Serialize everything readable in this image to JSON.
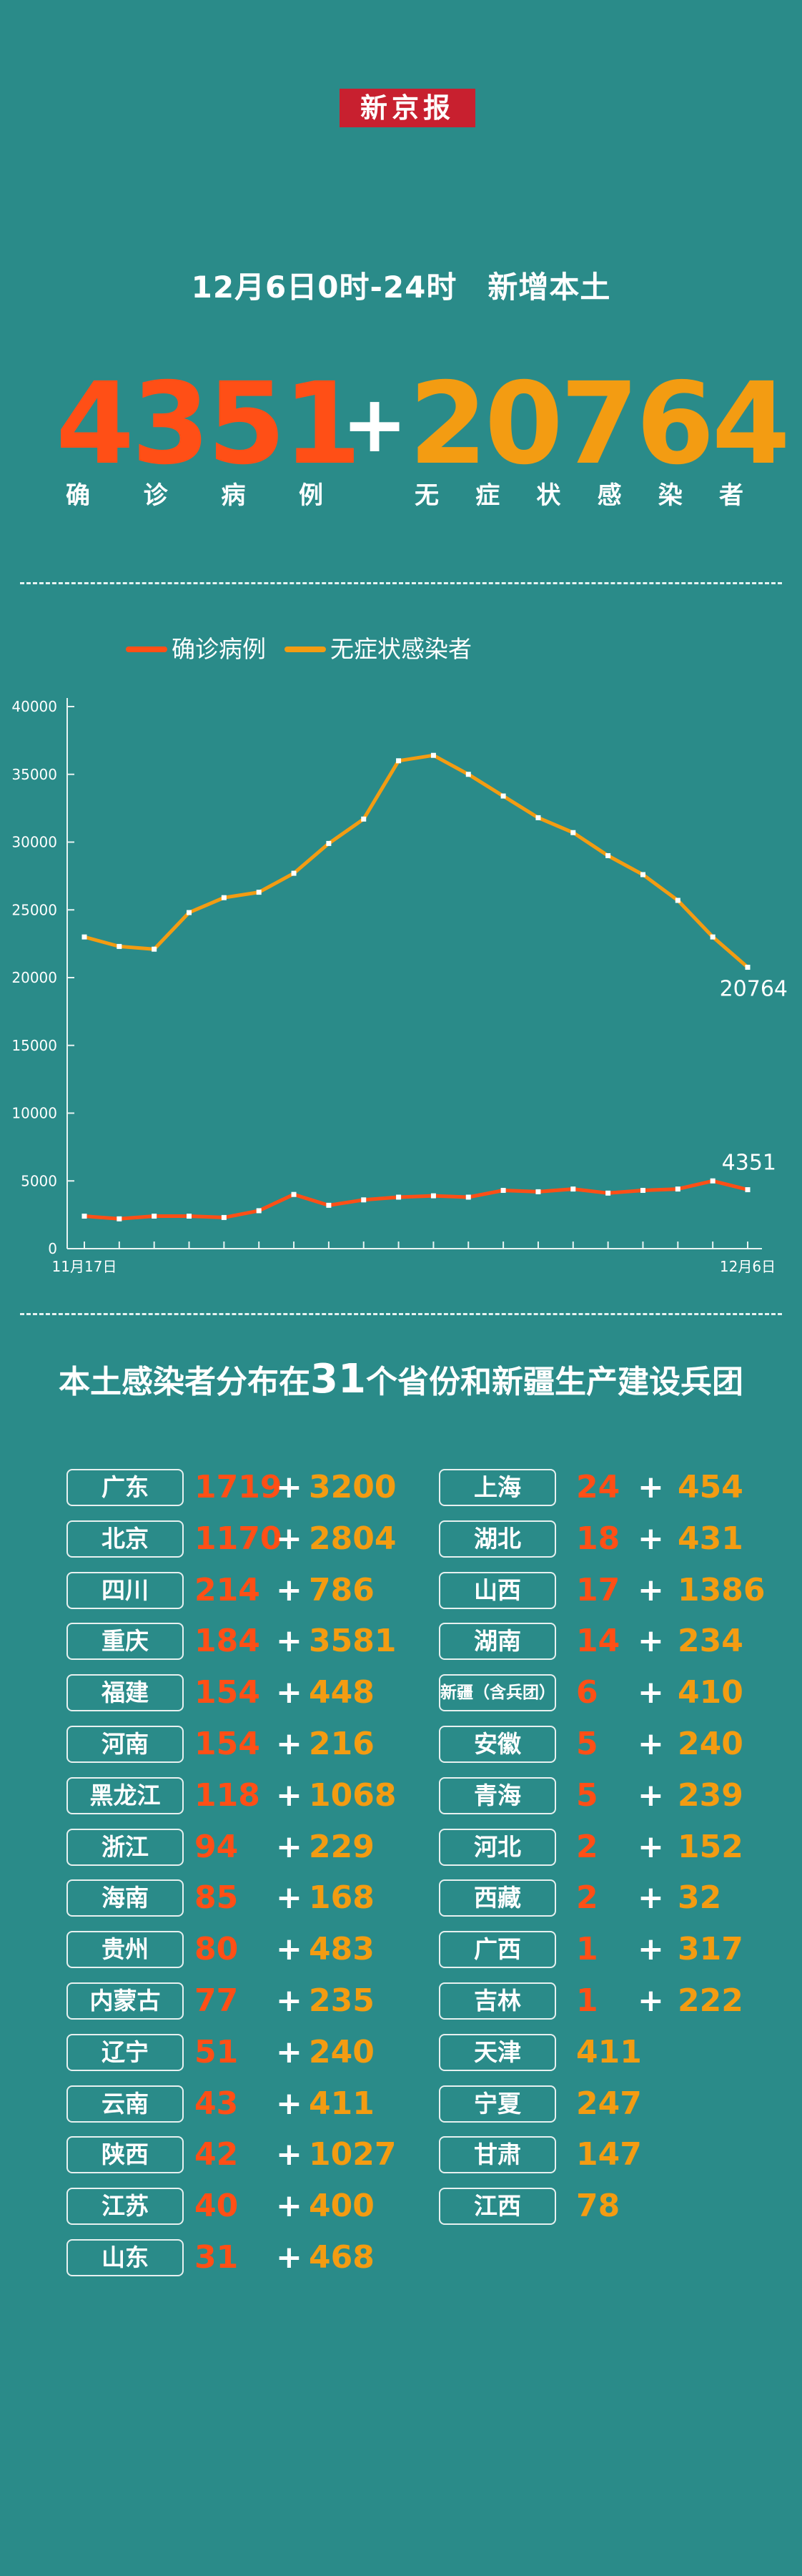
{
  "brand": "新京报",
  "subtitle": "12月6日0时-24时　新增本土",
  "headline": {
    "confirmed": "4351",
    "plus": "+",
    "asymptomatic": "20764",
    "confirmed_label": [
      "确",
      "诊",
      "病",
      "例"
    ],
    "asymptomatic_label": [
      "无",
      "症",
      "状",
      "感",
      "染",
      "者"
    ]
  },
  "colors": {
    "background": "#2a8b89",
    "confirmed": "#ff4f16",
    "asymptomatic": "#f39c12",
    "brand": "#c8202f"
  },
  "chart_data": {
    "type": "line",
    "x": [
      "11月17日",
      "11月18日",
      "11月19日",
      "11月20日",
      "11月21日",
      "11月22日",
      "11月23日",
      "11月24日",
      "11月25日",
      "11月26日",
      "11月27日",
      "11月28日",
      "11月29日",
      "11月30日",
      "12月1日",
      "12月2日",
      "12月3日",
      "12月4日",
      "12月5日",
      "12月6日"
    ],
    "x_tick_labels": [
      "11月17日",
      "12月6日"
    ],
    "series": [
      {
        "name": "确诊病例",
        "color": "#ff4f16",
        "values": [
          2400,
          2200,
          2400,
          2400,
          2300,
          2800,
          4000,
          3200,
          3600,
          3800,
          3900,
          3800,
          4300,
          4200,
          4400,
          4100,
          4300,
          4400,
          5000,
          4351
        ]
      },
      {
        "name": "无症状感染者",
        "color": "#f39c12",
        "values": [
          23000,
          22300,
          22100,
          24800,
          25900,
          26300,
          27700,
          29900,
          31700,
          36000,
          36400,
          35000,
          33400,
          31800,
          30700,
          29000,
          27600,
          25700,
          23000,
          20764
        ]
      }
    ],
    "end_labels": [
      "4351",
      "20764"
    ],
    "y_ticks": [
      "0",
      "5000",
      "10000",
      "15000",
      "20000",
      "25000",
      "30000",
      "35000",
      "40000"
    ],
    "ylim": [
      0,
      40000
    ],
    "legend": "top-left",
    "grid": false
  },
  "distribution": {
    "heading_prefix": "本土感染者分布在",
    "heading_count": "31",
    "heading_suffix": "个省份和新疆生产建设兵团",
    "left": [
      {
        "name": "广东",
        "confirmed": "1719",
        "asym": "3200"
      },
      {
        "name": "北京",
        "confirmed": "1170",
        "asym": "2804"
      },
      {
        "name": "四川",
        "confirmed": "214",
        "asym": "786"
      },
      {
        "name": "重庆",
        "confirmed": "184",
        "asym": "3581"
      },
      {
        "name": "福建",
        "confirmed": "154",
        "asym": "448"
      },
      {
        "name": "河南",
        "confirmed": "154",
        "asym": "216"
      },
      {
        "name": "黑龙江",
        "confirmed": "118",
        "asym": "1068"
      },
      {
        "name": "浙江",
        "confirmed": "94",
        "asym": "229"
      },
      {
        "name": "海南",
        "confirmed": "85",
        "asym": "168"
      },
      {
        "name": "贵州",
        "confirmed": "80",
        "asym": "483"
      },
      {
        "name": "内蒙古",
        "confirmed": "77",
        "asym": "235"
      },
      {
        "name": "辽宁",
        "confirmed": "51",
        "asym": "240"
      },
      {
        "name": "云南",
        "confirmed": "43",
        "asym": "411"
      },
      {
        "name": "陕西",
        "confirmed": "42",
        "asym": "1027"
      },
      {
        "name": "江苏",
        "confirmed": "40",
        "asym": "400"
      },
      {
        "name": "山东",
        "confirmed": "31",
        "asym": "468"
      }
    ],
    "right": [
      {
        "name": "上海",
        "confirmed": "24",
        "asym": "454"
      },
      {
        "name": "湖北",
        "confirmed": "18",
        "asym": "431"
      },
      {
        "name": "山西",
        "confirmed": "17",
        "asym": "1386"
      },
      {
        "name": "湖南",
        "confirmed": "14",
        "asym": "234"
      },
      {
        "name": "新疆（含兵团）",
        "confirmed": "6",
        "asym": "410"
      },
      {
        "name": "安徽",
        "confirmed": "5",
        "asym": "240"
      },
      {
        "name": "青海",
        "confirmed": "5",
        "asym": "239"
      },
      {
        "name": "河北",
        "confirmed": "2",
        "asym": "152"
      },
      {
        "name": "西藏",
        "confirmed": "2",
        "asym": "32"
      },
      {
        "name": "广西",
        "confirmed": "1",
        "asym": "317"
      },
      {
        "name": "吉林",
        "confirmed": "1",
        "asym": "222"
      },
      {
        "name": "天津",
        "confirmed": "",
        "asym": "411"
      },
      {
        "name": "宁夏",
        "confirmed": "",
        "asym": "247"
      },
      {
        "name": "甘肃",
        "confirmed": "",
        "asym": "147"
      },
      {
        "name": "江西",
        "confirmed": "",
        "asym": "78"
      }
    ]
  }
}
